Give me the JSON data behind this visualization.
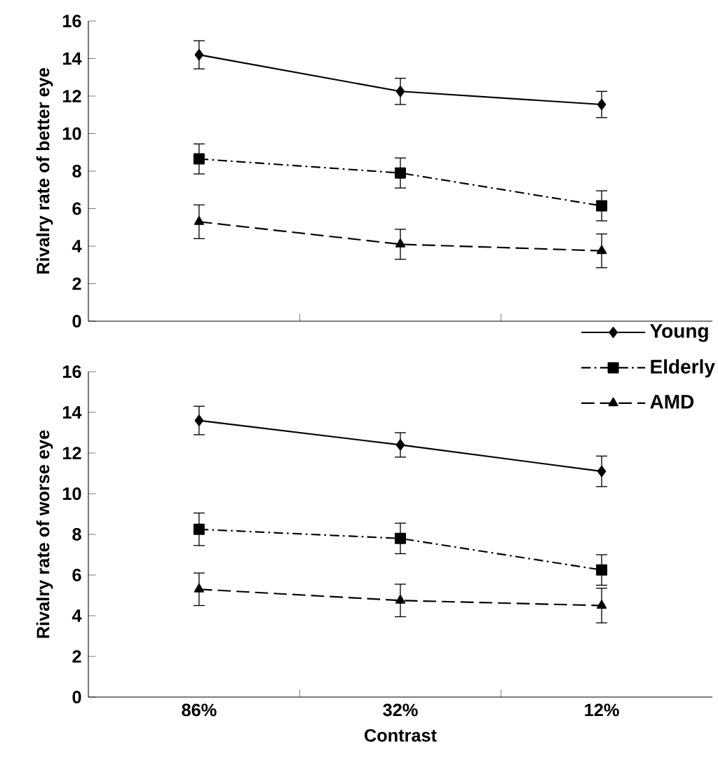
{
  "chart_data": [
    {
      "type": "line",
      "ylabel": "Rivalry rate of better eye",
      "categories": [
        null,
        null,
        null
      ],
      "ylim": [
        0,
        16
      ],
      "yticks": [
        0,
        2,
        4,
        6,
        8,
        10,
        12,
        14,
        16
      ],
      "tick_labels": "y",
      "series": [
        {
          "color": "#000000",
          "marker": "diamond",
          "line_style": "solid",
          "values": [
            14.2,
            12.25,
            11.55
          ],
          "errors": [
            0.75,
            0.7,
            0.7
          ]
        },
        {
          "color": "#000000",
          "marker": "square",
          "line_style": "dashdot",
          "values": [
            8.65,
            7.9,
            6.15
          ],
          "errors": [
            0.8,
            0.8,
            0.8
          ]
        },
        {
          "color": "#000000",
          "marker": "triangle",
          "line_style": "dashed",
          "values": [
            5.3,
            4.1,
            3.75
          ],
          "errors": [
            0.9,
            0.8,
            0.9
          ]
        }
      ]
    },
    {
      "type": "line",
      "ylabel": "Rivalry rate of worse eye",
      "xlabel": "Contrast",
      "categories": [
        "86%",
        "32%",
        "12%"
      ],
      "ylim": [
        0,
        16
      ],
      "yticks": [
        0,
        2,
        4,
        6,
        8,
        10,
        12,
        14,
        16
      ],
      "legend": "top right",
      "series": [
        {
          "name": "Young",
          "color": "#000000",
          "marker": "diamond",
          "line_style": "solid",
          "values": [
            13.6,
            12.4,
            11.1
          ],
          "errors": [
            0.7,
            0.6,
            0.75
          ]
        },
        {
          "name": "Elderly",
          "color": "#000000",
          "marker": "square",
          "line_style": "dashdot",
          "values": [
            8.25,
            7.8,
            6.25
          ],
          "errors": [
            0.8,
            0.75,
            0.75
          ]
        },
        {
          "name": "AMD",
          "color": "#000000",
          "marker": "triangle",
          "line_style": "dashed",
          "values": [
            5.3,
            4.75,
            4.5
          ],
          "errors": [
            0.8,
            0.8,
            0.85
          ]
        }
      ]
    }
  ]
}
